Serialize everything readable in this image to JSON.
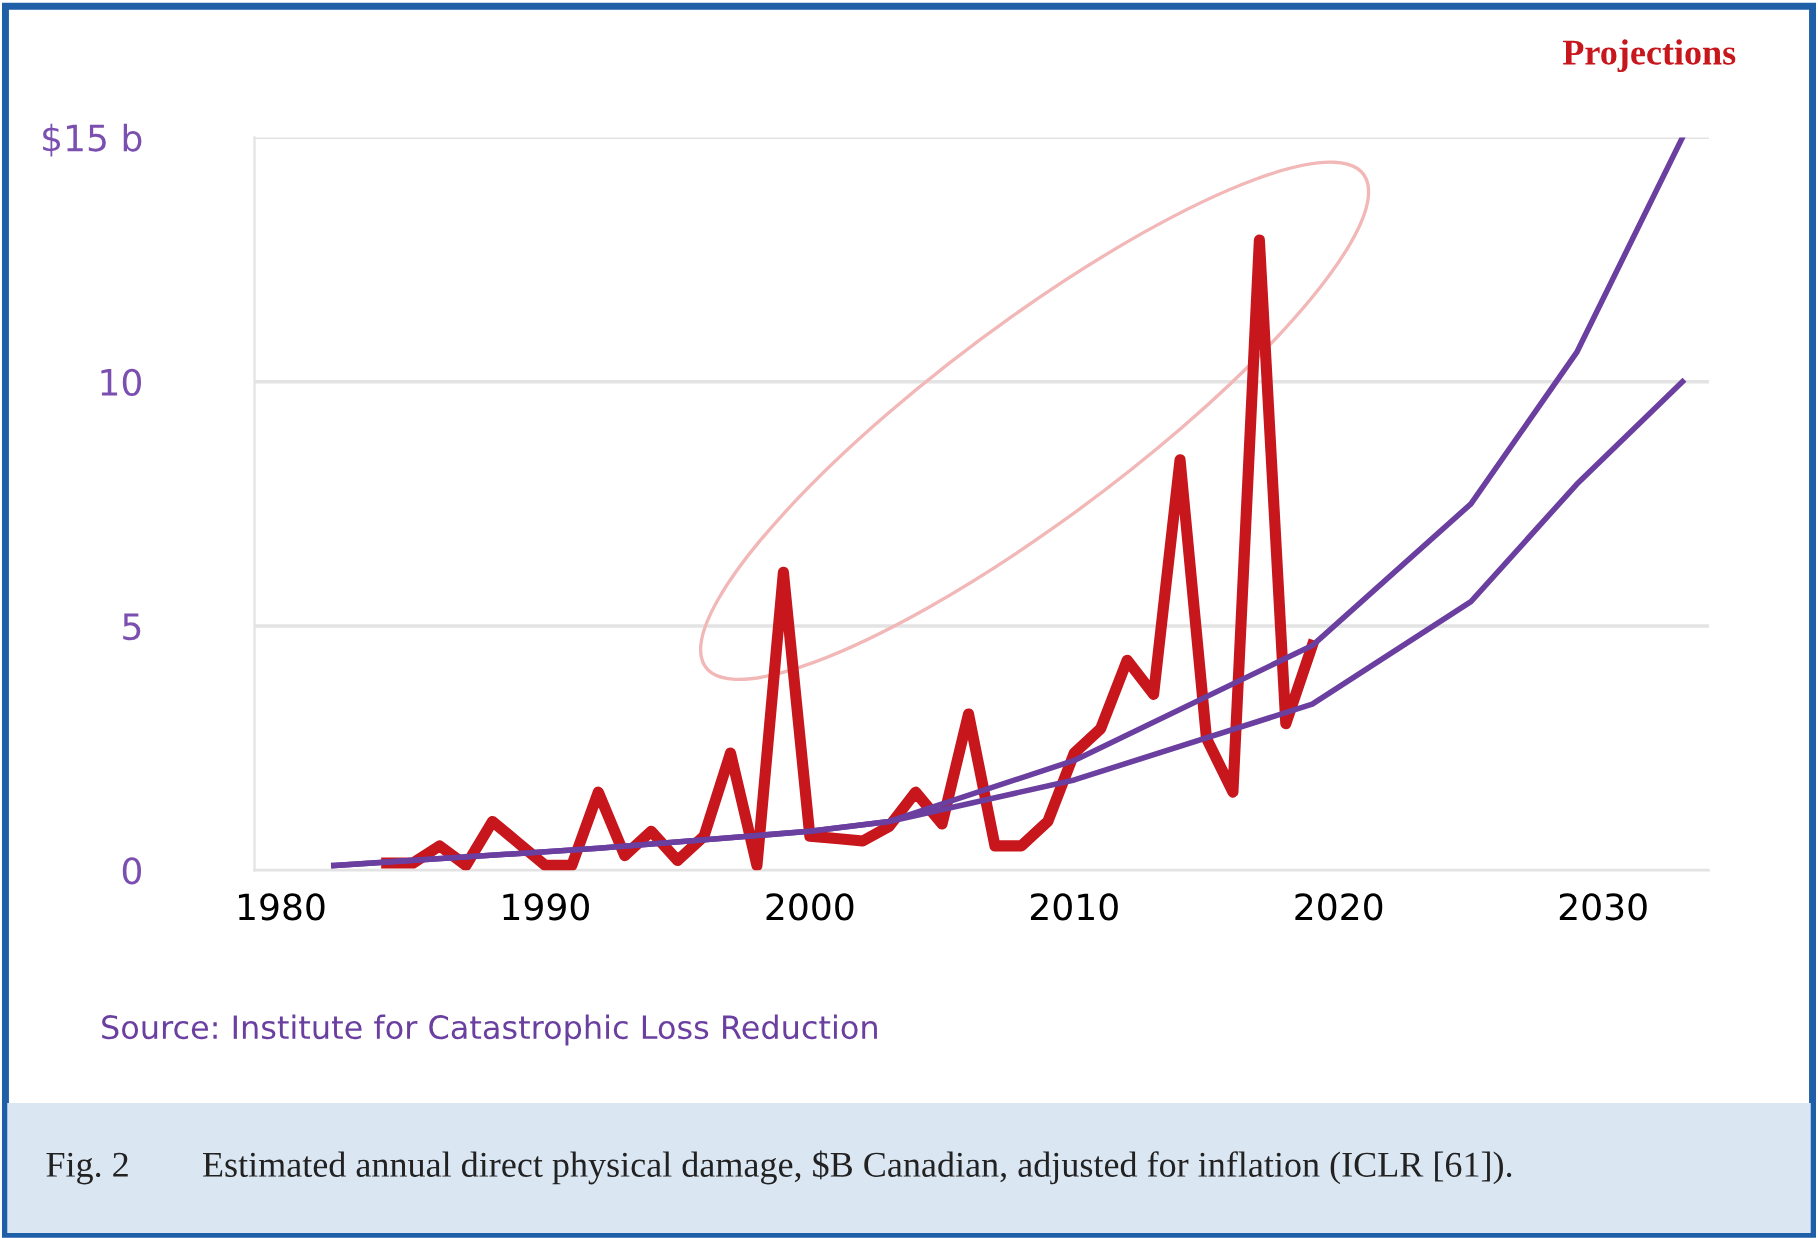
{
  "chart_data": {
    "type": "line",
    "annotations": [
      "Projections",
      "Source: Institute for Catastrophic Loss Reduction",
      "Fig. 2        Estimated annual direct physical damage, $B Canadian, adjusted for inflation (ICLR [61])."
    ],
    "x": [
      1984,
      1985,
      1986,
      1987,
      1988,
      1989,
      1990,
      1991,
      1992,
      1993,
      1994,
      1995,
      1996,
      1997,
      1998,
      1999,
      2000,
      2001,
      2002,
      2003,
      2004,
      2005,
      2006,
      2007,
      2008,
      2009,
      2010,
      2011,
      2012,
      2013,
      2014,
      2015,
      2016,
      2017,
      2018,
      2019
    ],
    "series": [
      {
        "color": "#c8161d",
        "values": [
          0.15,
          0.15,
          0.5,
          0.1,
          1.0,
          0.55,
          0.1,
          0.1,
          1.6,
          0.3,
          0.8,
          0.2,
          0.7,
          2.4,
          0.1,
          6.1,
          0.7,
          0.65,
          0.6,
          0.9,
          1.6,
          0.95,
          3.2,
          0.5,
          0.5,
          1.0,
          2.4,
          2.9,
          4.3,
          3.6,
          8.4,
          2.7,
          1.6,
          12.9,
          3.0,
          4.6
        ]
      },
      {
        "color": "#6a3fa0",
        "x": [
          1982,
          1992,
          2000,
          2003,
          2010,
          2019,
          2025,
          2029,
          2033
        ],
        "values": [
          0.1,
          0.45,
          0.8,
          1.0,
          2.25,
          4.6,
          7.5,
          10.6,
          15
        ]
      },
      {
        "color": "#6a3fa0",
        "x": [
          1982,
          1992,
          2000,
          2003,
          2010,
          2019,
          2025,
          2029,
          2033
        ],
        "values": [
          0.1,
          0.45,
          0.8,
          1.0,
          1.85,
          3.4,
          5.5,
          7.9,
          10
        ]
      }
    ],
    "xlim": [
      1979,
      2034
    ],
    "xticks": [
      1980,
      1990,
      2000,
      2010,
      2020,
      2030
    ],
    "ylim": [
      0,
      15
    ],
    "yticks": [
      0,
      5,
      10,
      {
        "value": 15,
        "label": "$15 b"
      }
    ],
    "grid": "y"
  }
}
